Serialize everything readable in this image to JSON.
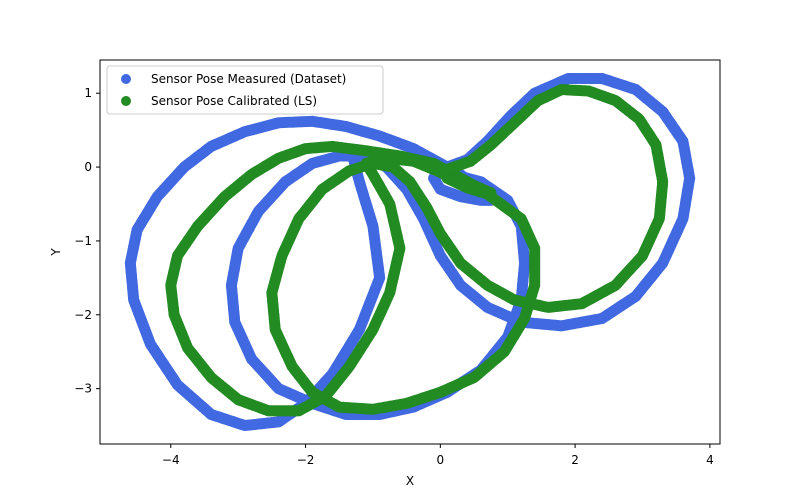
{
  "chart_data": {
    "type": "scatter",
    "title": "",
    "xlabel": "X",
    "ylabel": "Y",
    "xlim": [
      -5.05,
      4.15
    ],
    "ylim": [
      -3.75,
      1.45
    ],
    "xticks": [
      -4,
      -2,
      0,
      2,
      4
    ],
    "yticks": [
      1,
      0,
      -1,
      -2,
      -3
    ],
    "grid": false,
    "legend_position": "top-left",
    "series": [
      {
        "name": "Sensor Pose Measured (Dataset)",
        "color": "#4169e1",
        "points": [
          [
            0.75,
            -0.45
          ],
          [
            0.6,
            -0.35
          ],
          [
            0.3,
            -0.1
          ],
          [
            0.0,
            0.05
          ],
          [
            -0.4,
            0.25
          ],
          [
            -0.9,
            0.42
          ],
          [
            -1.4,
            0.55
          ],
          [
            -1.9,
            0.62
          ],
          [
            -2.4,
            0.6
          ],
          [
            -2.9,
            0.48
          ],
          [
            -3.4,
            0.28
          ],
          [
            -3.8,
            0.0
          ],
          [
            -4.2,
            -0.4
          ],
          [
            -4.5,
            -0.85
          ],
          [
            -4.6,
            -1.3
          ],
          [
            -4.55,
            -1.8
          ],
          [
            -4.3,
            -2.4
          ],
          [
            -3.9,
            -2.95
          ],
          [
            -3.4,
            -3.35
          ],
          [
            -2.9,
            -3.5
          ],
          [
            -2.4,
            -3.45
          ],
          [
            -2.0,
            -3.2
          ],
          [
            -1.6,
            -2.8
          ],
          [
            -1.2,
            -2.2
          ],
          [
            -0.9,
            -1.5
          ],
          [
            -1.0,
            -0.8
          ],
          [
            -1.2,
            -0.2
          ],
          [
            -1.3,
            0.15
          ],
          [
            -1.0,
            0.2
          ],
          [
            -0.6,
            0.15
          ],
          [
            -0.2,
            0.05
          ],
          [
            0.2,
            -0.1
          ],
          [
            0.6,
            -0.2
          ],
          [
            1.0,
            -0.45
          ],
          [
            1.2,
            -0.8
          ],
          [
            1.25,
            -1.3
          ],
          [
            1.2,
            -1.8
          ],
          [
            1.0,
            -2.3
          ],
          [
            0.6,
            -2.75
          ],
          [
            0.1,
            -3.05
          ],
          [
            -0.4,
            -3.25
          ],
          [
            -0.9,
            -3.35
          ],
          [
            -1.4,
            -3.35
          ],
          [
            -1.9,
            -3.2
          ],
          [
            -2.4,
            -3.0
          ],
          [
            -2.8,
            -2.6
          ],
          [
            -3.05,
            -2.1
          ],
          [
            -3.1,
            -1.6
          ],
          [
            -3.0,
            -1.1
          ],
          [
            -2.7,
            -0.6
          ],
          [
            -2.3,
            -0.2
          ],
          [
            -1.9,
            0.05
          ],
          [
            -1.5,
            0.15
          ],
          [
            -1.1,
            0.15
          ],
          [
            -0.8,
            0.0
          ],
          [
            -0.5,
            -0.3
          ],
          [
            -0.25,
            -0.7
          ],
          [
            0.0,
            -1.2
          ],
          [
            0.3,
            -1.6
          ],
          [
            0.7,
            -1.9
          ],
          [
            1.2,
            -2.1
          ],
          [
            1.8,
            -2.15
          ],
          [
            2.4,
            -2.05
          ],
          [
            2.9,
            -1.75
          ],
          [
            3.3,
            -1.3
          ],
          [
            3.6,
            -0.7
          ],
          [
            3.7,
            -0.15
          ],
          [
            3.6,
            0.35
          ],
          [
            3.3,
            0.75
          ],
          [
            2.9,
            1.05
          ],
          [
            2.4,
            1.2
          ],
          [
            1.9,
            1.2
          ],
          [
            1.4,
            1.0
          ],
          [
            1.05,
            0.7
          ],
          [
            0.7,
            0.35
          ],
          [
            0.4,
            0.1
          ],
          [
            0.1,
            0.0
          ],
          [
            -0.1,
            -0.15
          ],
          [
            0.0,
            -0.3
          ],
          [
            0.3,
            -0.4
          ],
          [
            0.6,
            -0.45
          ],
          [
            0.75,
            -0.45
          ]
        ]
      },
      {
        "name": "Sensor Pose Calibrated (LS)",
        "color": "#228b22",
        "points": [
          [
            0.75,
            -0.35
          ],
          [
            0.5,
            -0.25
          ],
          [
            0.2,
            -0.1
          ],
          [
            -0.1,
            0.05
          ],
          [
            -0.6,
            0.15
          ],
          [
            -1.1,
            0.22
          ],
          [
            -1.6,
            0.28
          ],
          [
            -2.0,
            0.25
          ],
          [
            -2.4,
            0.12
          ],
          [
            -2.8,
            -0.1
          ],
          [
            -3.2,
            -0.4
          ],
          [
            -3.6,
            -0.8
          ],
          [
            -3.9,
            -1.2
          ],
          [
            -4.0,
            -1.6
          ],
          [
            -3.95,
            -2.0
          ],
          [
            -3.75,
            -2.45
          ],
          [
            -3.4,
            -2.85
          ],
          [
            -3.0,
            -3.15
          ],
          [
            -2.55,
            -3.3
          ],
          [
            -2.1,
            -3.3
          ],
          [
            -1.7,
            -3.1
          ],
          [
            -1.35,
            -2.7
          ],
          [
            -1.0,
            -2.2
          ],
          [
            -0.75,
            -1.7
          ],
          [
            -0.6,
            -1.1
          ],
          [
            -0.75,
            -0.5
          ],
          [
            -1.0,
            -0.1
          ],
          [
            -1.1,
            0.05
          ],
          [
            -0.8,
            0.12
          ],
          [
            -0.4,
            0.08
          ],
          [
            -0.05,
            -0.05
          ],
          [
            0.3,
            -0.2
          ],
          [
            0.6,
            -0.3
          ],
          [
            0.9,
            -0.5
          ],
          [
            1.2,
            -0.7
          ],
          [
            1.4,
            -1.1
          ],
          [
            1.4,
            -1.6
          ],
          [
            1.25,
            -2.05
          ],
          [
            0.95,
            -2.5
          ],
          [
            0.5,
            -2.85
          ],
          [
            0.0,
            -3.05
          ],
          [
            -0.5,
            -3.2
          ],
          [
            -1.0,
            -3.28
          ],
          [
            -1.5,
            -3.25
          ],
          [
            -1.9,
            -3.05
          ],
          [
            -2.2,
            -2.7
          ],
          [
            -2.45,
            -2.2
          ],
          [
            -2.5,
            -1.7
          ],
          [
            -2.35,
            -1.2
          ],
          [
            -2.1,
            -0.7
          ],
          [
            -1.75,
            -0.3
          ],
          [
            -1.35,
            -0.05
          ],
          [
            -1.0,
            0.05
          ],
          [
            -0.7,
            0.0
          ],
          [
            -0.45,
            -0.2
          ],
          [
            -0.2,
            -0.55
          ],
          [
            0.0,
            -0.9
          ],
          [
            0.3,
            -1.3
          ],
          [
            0.7,
            -1.6
          ],
          [
            1.1,
            -1.8
          ],
          [
            1.6,
            -1.9
          ],
          [
            2.1,
            -1.85
          ],
          [
            2.6,
            -1.6
          ],
          [
            3.0,
            -1.2
          ],
          [
            3.25,
            -0.7
          ],
          [
            3.3,
            -0.2
          ],
          [
            3.2,
            0.3
          ],
          [
            2.95,
            0.65
          ],
          [
            2.6,
            0.9
          ],
          [
            2.2,
            1.03
          ],
          [
            1.8,
            1.05
          ],
          [
            1.45,
            0.9
          ],
          [
            1.1,
            0.6
          ],
          [
            0.75,
            0.3
          ],
          [
            0.45,
            0.08
          ],
          [
            0.2,
            0.0
          ],
          [
            0.05,
            -0.05
          ],
          [
            0.1,
            -0.15
          ],
          [
            0.4,
            -0.28
          ],
          [
            0.65,
            -0.35
          ],
          [
            0.75,
            -0.35
          ]
        ]
      }
    ]
  }
}
